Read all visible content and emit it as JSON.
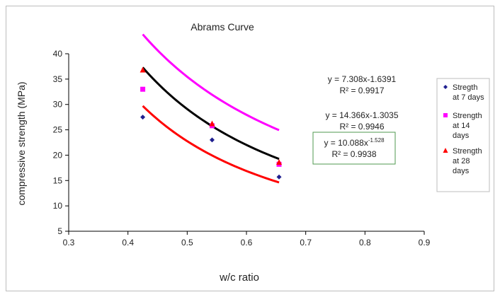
{
  "chart_data": {
    "type": "scatter",
    "title": "Abrams Curve",
    "xlabel": "w/c ratio",
    "ylabel": "compressive strength (MPa)",
    "xlim": [
      0.3,
      0.9
    ],
    "ylim": [
      5,
      40
    ],
    "xticks": [
      "0.3",
      "0.4",
      "0.5",
      "0.6",
      "0.7",
      "0.8",
      "0.9"
    ],
    "yticks": [
      "5",
      "10",
      "15",
      "20",
      "25",
      "30",
      "35",
      "40"
    ],
    "grid": false,
    "legend_position": "right",
    "series": [
      {
        "name": "Stregth at 7 days",
        "legend_lines": [
          "Stregth",
          "at 7 days"
        ],
        "marker": "diamond",
        "marker_color": "#1f1f8f",
        "trend_color": "#000000",
        "x": [
          0.425,
          0.542,
          0.655
        ],
        "y": [
          27.5,
          23.0,
          15.7
        ],
        "trend": {
          "a": 10.088,
          "b": -1.528
        }
      },
      {
        "name": "Strength at 14 days",
        "legend_lines": [
          "Strength",
          "at 14",
          "days"
        ],
        "marker": "square",
        "marker_color": "#ff00ff",
        "trend_color": "#ff00ff",
        "x": [
          0.425,
          0.542,
          0.655
        ],
        "y": [
          33.0,
          25.8,
          18.2
        ],
        "trend": {
          "a": 14.366,
          "b": -1.3035
        }
      },
      {
        "name": "Strength at 28 days",
        "legend_lines": [
          "Strength",
          "at 28",
          "days"
        ],
        "marker": "triangle",
        "marker_color": "#ff0000",
        "trend_color": "#ff0000",
        "x": [
          0.425,
          0.542,
          0.655
        ],
        "y": [
          36.8,
          26.2,
          18.6
        ],
        "trend": {
          "a": 7.308,
          "b": -1.6391
        }
      }
    ],
    "annotations": [
      {
        "line1": "y = 7.308x-1.6391",
        "line2": "R² = 0.9917",
        "boxed": false
      },
      {
        "line1": "y = 14.366x-1.3035",
        "line2": "R² = 0.9946",
        "boxed": false
      },
      {
        "line1": "y = 10.088x",
        "sup": "-1.528",
        "line2": "R² = 0.9938",
        "boxed": true,
        "box_color": "#4f9a4f"
      }
    ]
  }
}
